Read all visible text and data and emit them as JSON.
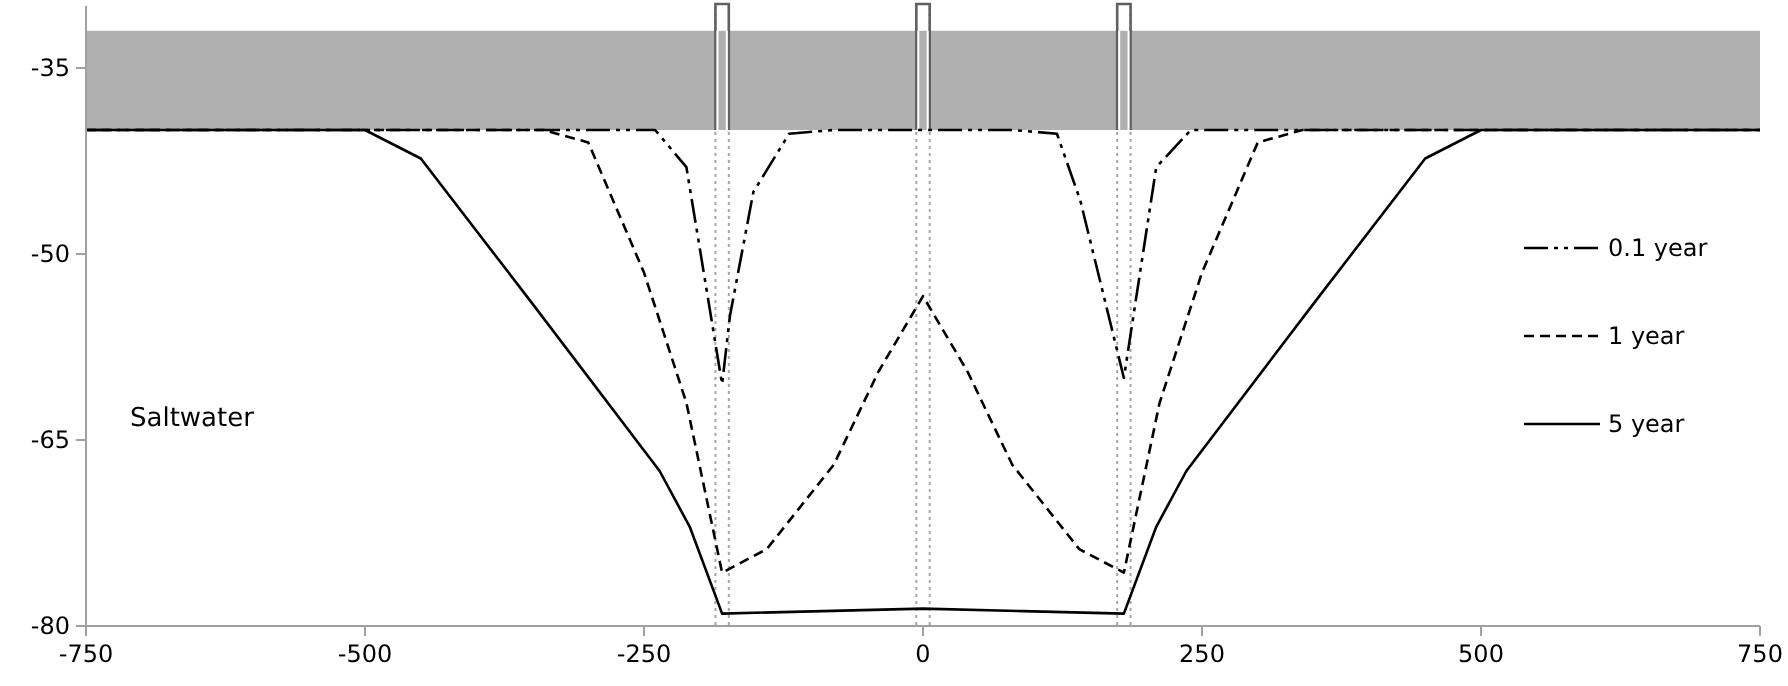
{
  "chart_data": {
    "type": "line",
    "xlim": [
      -750,
      750
    ],
    "xticks": [
      -750,
      -500,
      -250,
      0,
      250,
      500,
      750
    ],
    "ylim": [
      -80,
      -30
    ],
    "yticks": [
      -35,
      -50,
      -65,
      -80
    ],
    "legend": "right",
    "marker": "none",
    "series": [
      {
        "name": "0.1 year",
        "color": "#000000",
        "line_style": "dashdot",
        "x": [
          -750,
          -240,
          -212,
          -180,
          -173,
          -152,
          -120,
          -80,
          80,
          120,
          141,
          180,
          209,
          240,
          750
        ],
        "values": [
          -40,
          -40,
          -43,
          -60.5,
          -55,
          -45,
          -40.3,
          -40,
          -40,
          -40.3,
          -45.7,
          -60,
          -43,
          -40,
          -40
        ]
      },
      {
        "name": "1 year",
        "color": "#000000",
        "line_style": "dashed",
        "x": [
          -750,
          -340,
          -300,
          -250,
          -212,
          -180,
          -140,
          -80,
          -40,
          0,
          40,
          80,
          140,
          180,
          212,
          250,
          300,
          340,
          750
        ],
        "values": [
          -40,
          -40,
          -41,
          -51.5,
          -62,
          -75.7,
          -73.8,
          -67,
          -59.5,
          -53.4,
          -59.5,
          -67,
          -73.8,
          -75.7,
          -62,
          -51.5,
          -41,
          -40,
          -40
        ]
      },
      {
        "name": "5 year",
        "color": "#000000",
        "line_style": "solid",
        "x": [
          -750,
          -500,
          -450,
          -350,
          -236,
          -209,
          -180,
          -90,
          0,
          90,
          180,
          209,
          236,
          350,
          450,
          500,
          750
        ],
        "values": [
          -40,
          -40,
          -42.3,
          -54,
          -67.5,
          -72,
          -79,
          -78.8,
          -78.6,
          -78.8,
          -79,
          -72,
          -67.5,
          -54,
          -42.3,
          -40,
          -40
        ]
      }
    ],
    "bands": [
      {
        "axis": "y",
        "from": -40,
        "to": -32,
        "color": "#b0b0b0"
      }
    ],
    "ref_lines": [
      {
        "axis": "x",
        "value": -186,
        "color": "#a6a6a6",
        "line_style": "dotted"
      },
      {
        "axis": "x",
        "value": -174,
        "color": "#a6a6a6",
        "line_style": "dotted"
      },
      {
        "axis": "x",
        "value": -6,
        "color": "#a6a6a6",
        "line_style": "dotted"
      },
      {
        "axis": "x",
        "value": 6,
        "color": "#a6a6a6",
        "line_style": "dotted"
      },
      {
        "axis": "x",
        "value": 174,
        "color": "#a6a6a6",
        "line_style": "dotted"
      },
      {
        "axis": "x",
        "value": 186,
        "color": "#a6a6a6",
        "line_style": "dotted"
      }
    ],
    "annotations": [
      "Saltwater"
    ]
  }
}
